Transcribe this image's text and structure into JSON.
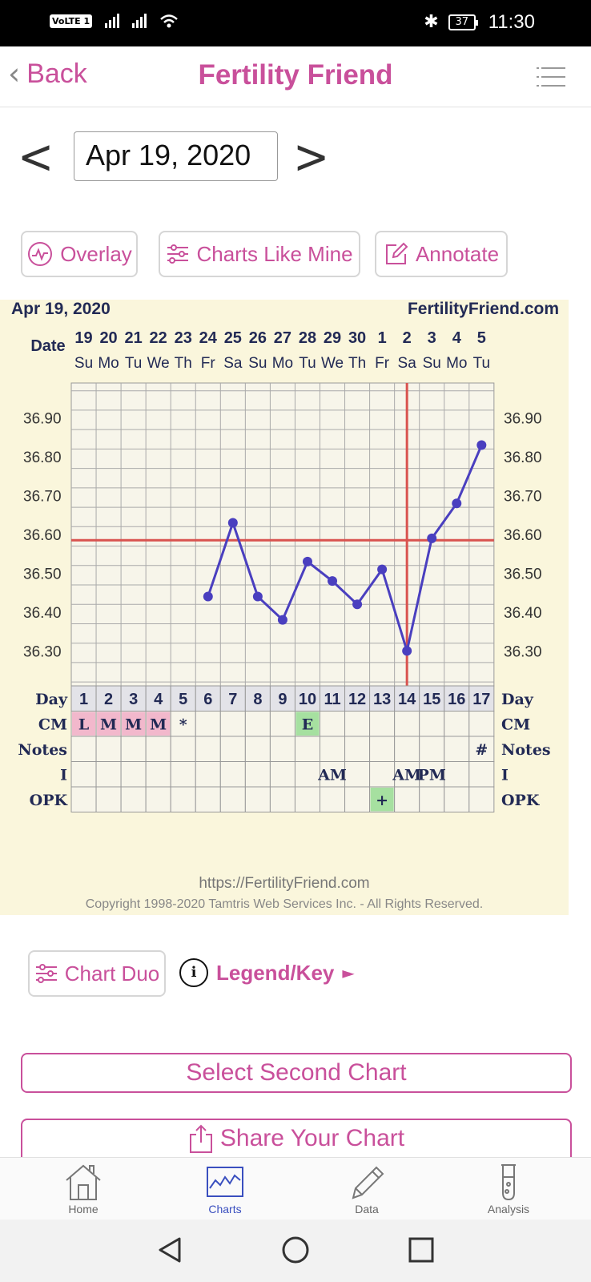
{
  "status_bar": {
    "volte": "VoLTE 1",
    "battery": "37",
    "time": "11:30"
  },
  "header": {
    "back_label": "Back",
    "title": "Fertility Friend"
  },
  "date_selector": {
    "value": "Apr 19, 2020"
  },
  "actions": {
    "overlay": "Overlay",
    "charts_like_mine": "Charts Like Mine",
    "annotate": "Annotate"
  },
  "chart_data": {
    "type": "line",
    "title": "Apr 19, 2020",
    "site": "FertilityFriend.com",
    "date_label": "Date",
    "dates": [
      "19",
      "20",
      "21",
      "22",
      "23",
      "24",
      "25",
      "26",
      "27",
      "28",
      "29",
      "30",
      "1",
      "2",
      "3",
      "4",
      "5"
    ],
    "weekdays": [
      "Su",
      "Mo",
      "Tu",
      "We",
      "Th",
      "Fr",
      "Sa",
      "Su",
      "Mo",
      "Tu",
      "We",
      "Th",
      "Fr",
      "Sa",
      "Su",
      "Mo",
      "Tu"
    ],
    "yticks": [
      "36.90",
      "36.80",
      "36.70",
      "36.60",
      "36.50",
      "36.40",
      "36.30"
    ],
    "ylim": [
      36.21,
      36.99
    ],
    "series": [
      {
        "x": [
          6,
          7,
          8,
          9,
          10,
          11,
          12,
          13,
          14,
          15,
          16,
          17
        ],
        "values": [
          36.44,
          36.63,
          36.44,
          36.38,
          36.53,
          36.48,
          36.42,
          36.51,
          36.3,
          36.59,
          36.68,
          36.83
        ]
      }
    ],
    "coverline": 36.585,
    "ovulation_day": 14,
    "row_labels": {
      "day": "Day",
      "cm": "CM",
      "notes": "Notes",
      "i": "I",
      "opk": "OPK"
    },
    "days": [
      "1",
      "2",
      "3",
      "4",
      "5",
      "6",
      "7",
      "8",
      "9",
      "10",
      "11",
      "12",
      "13",
      "14",
      "15",
      "16",
      "17"
    ],
    "cm": [
      {
        "day": 1,
        "text": "L",
        "color": "#f2b8cc"
      },
      {
        "day": 2,
        "text": "M",
        "color": "#f2b8cc"
      },
      {
        "day": 3,
        "text": "M",
        "color": "#f2b8cc"
      },
      {
        "day": 4,
        "text": "M",
        "color": "#f2b8cc"
      },
      {
        "day": 5,
        "text": "*",
        "color": ""
      },
      {
        "day": 10,
        "text": "E",
        "color": "#a6e0a0"
      }
    ],
    "notes": [
      {
        "day": 17,
        "text": "#"
      }
    ],
    "intercourse": [
      {
        "day": 11,
        "text": "AM"
      },
      {
        "day": 14,
        "text": "AM"
      },
      {
        "day": 15,
        "text": "PM"
      }
    ],
    "opk": [
      {
        "day": 13,
        "text": "+",
        "color": "#a6e0a0"
      }
    ]
  },
  "chart_footer": {
    "url": "https://FertilityFriend.com",
    "copyright": "Copyright 1998-2020 Tamtris Web Services Inc. - All Rights Reserved."
  },
  "chart_duo": "Chart Duo",
  "legend_key": "Legend/Key",
  "select_second_chart": "Select Second Chart",
  "share_chart": "Share Your Chart",
  "bottom_nav": {
    "home": "Home",
    "charts": "Charts",
    "data": "Data",
    "analysis": "Analysis"
  },
  "colors": {
    "accent": "#c9509b",
    "temp_line": "#4a3fbf",
    "coverline": "#d9534f",
    "nav_active": "#3a4fbf"
  }
}
